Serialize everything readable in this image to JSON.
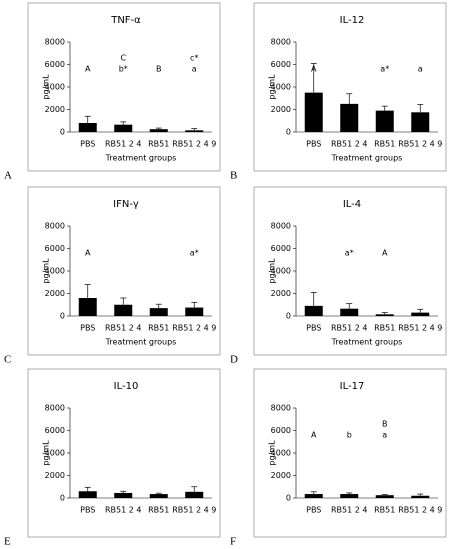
{
  "chart_data": [
    {
      "type": "bar",
      "panel": "A",
      "title": "TNF-α",
      "ylabel": "pg/mL",
      "xlabel": "Treatment groups",
      "color": "#000000",
      "categories": [
        "PBS",
        "RB51 2 4",
        "RB51",
        "RB51 2 4 9"
      ],
      "values": [
        800,
        650,
        250,
        150
      ],
      "errors": [
        600,
        250,
        100,
        150
      ],
      "annotations": [
        [
          "A"
        ],
        [
          "C",
          "b*"
        ],
        [
          "B"
        ],
        [
          "c*",
          "a"
        ]
      ],
      "ylim": [
        0,
        8000
      ],
      "yticks": [
        0,
        2000,
        4000,
        6000,
        8000
      ]
    },
    {
      "type": "bar",
      "panel": "B",
      "title": "IL-12",
      "ylabel": "pg/mL",
      "xlabel": "Treatment groups",
      "color": "#000000",
      "categories": [
        "PBS",
        "RB51 2 4",
        "RB51",
        "RB51 2 4 9"
      ],
      "values": [
        3500,
        2500,
        1900,
        1750
      ],
      "errors": [
        2600,
        900,
        400,
        700
      ],
      "annotations": [
        [
          "A"
        ],
        [],
        [
          "a*"
        ],
        [
          "a"
        ]
      ],
      "ylim": [
        0,
        8000
      ],
      "yticks": [
        0,
        2000,
        4000,
        6000,
        8000
      ]
    },
    {
      "type": "bar",
      "panel": "C",
      "title": "IFN-γ",
      "ylabel": "pg/mL",
      "xlabel": "Treatment groups",
      "color": "#000000",
      "categories": [
        "PBS",
        "RB51 2 4",
        "RB51",
        "RB51 2 4 9"
      ],
      "values": [
        1600,
        1000,
        700,
        750
      ],
      "errors": [
        1200,
        600,
        350,
        450
      ],
      "annotations": [
        [
          "A"
        ],
        [],
        [],
        [
          "a*"
        ]
      ],
      "ylim": [
        0,
        8000
      ],
      "yticks": [
        0,
        2000,
        4000,
        6000,
        8000
      ]
    },
    {
      "type": "bar",
      "panel": "D",
      "title": "IL-4",
      "ylabel": "pg/mL",
      "xlabel": "Treatment groups",
      "color": "#000000",
      "categories": [
        "PBS",
        "RB51 2 4",
        "RB51",
        "RB51 2 4 9"
      ],
      "values": [
        900,
        650,
        150,
        300
      ],
      "errors": [
        1200,
        450,
        150,
        300
      ],
      "annotations": [
        [],
        [
          "a*"
        ],
        [
          "A"
        ],
        []
      ],
      "ylim": [
        0,
        8000
      ],
      "yticks": [
        0,
        2000,
        4000,
        6000,
        8000
      ]
    },
    {
      "type": "bar",
      "panel": "E",
      "title": "IL-10",
      "ylabel": "pg/mL",
      "color": "#000000",
      "categories": [
        "PBS",
        "RB51 2 4",
        "RB51",
        "RB51 2 4 9"
      ],
      "values": [
        600,
        450,
        350,
        550
      ],
      "errors": [
        350,
        150,
        80,
        450
      ],
      "annotations": [
        [],
        [],
        [],
        []
      ],
      "ylim": [
        0,
        8000
      ],
      "yticks": [
        0,
        2000,
        4000,
        6000,
        8000
      ]
    },
    {
      "type": "bar",
      "panel": "F",
      "title": "IL-17",
      "ylabel": "pg/mL",
      "color": "#000000",
      "categories": [
        "PBS",
        "RB51 2 4",
        "RB51",
        "RB51 2 4 9"
      ],
      "values": [
        350,
        350,
        250,
        200
      ],
      "errors": [
        200,
        100,
        50,
        150
      ],
      "annotations": [
        [
          "A"
        ],
        [
          "b"
        ],
        [
          "B",
          "a"
        ],
        []
      ],
      "ylim": [
        0,
        8000
      ],
      "yticks": [
        0,
        2000,
        4000,
        6000,
        8000
      ]
    }
  ]
}
